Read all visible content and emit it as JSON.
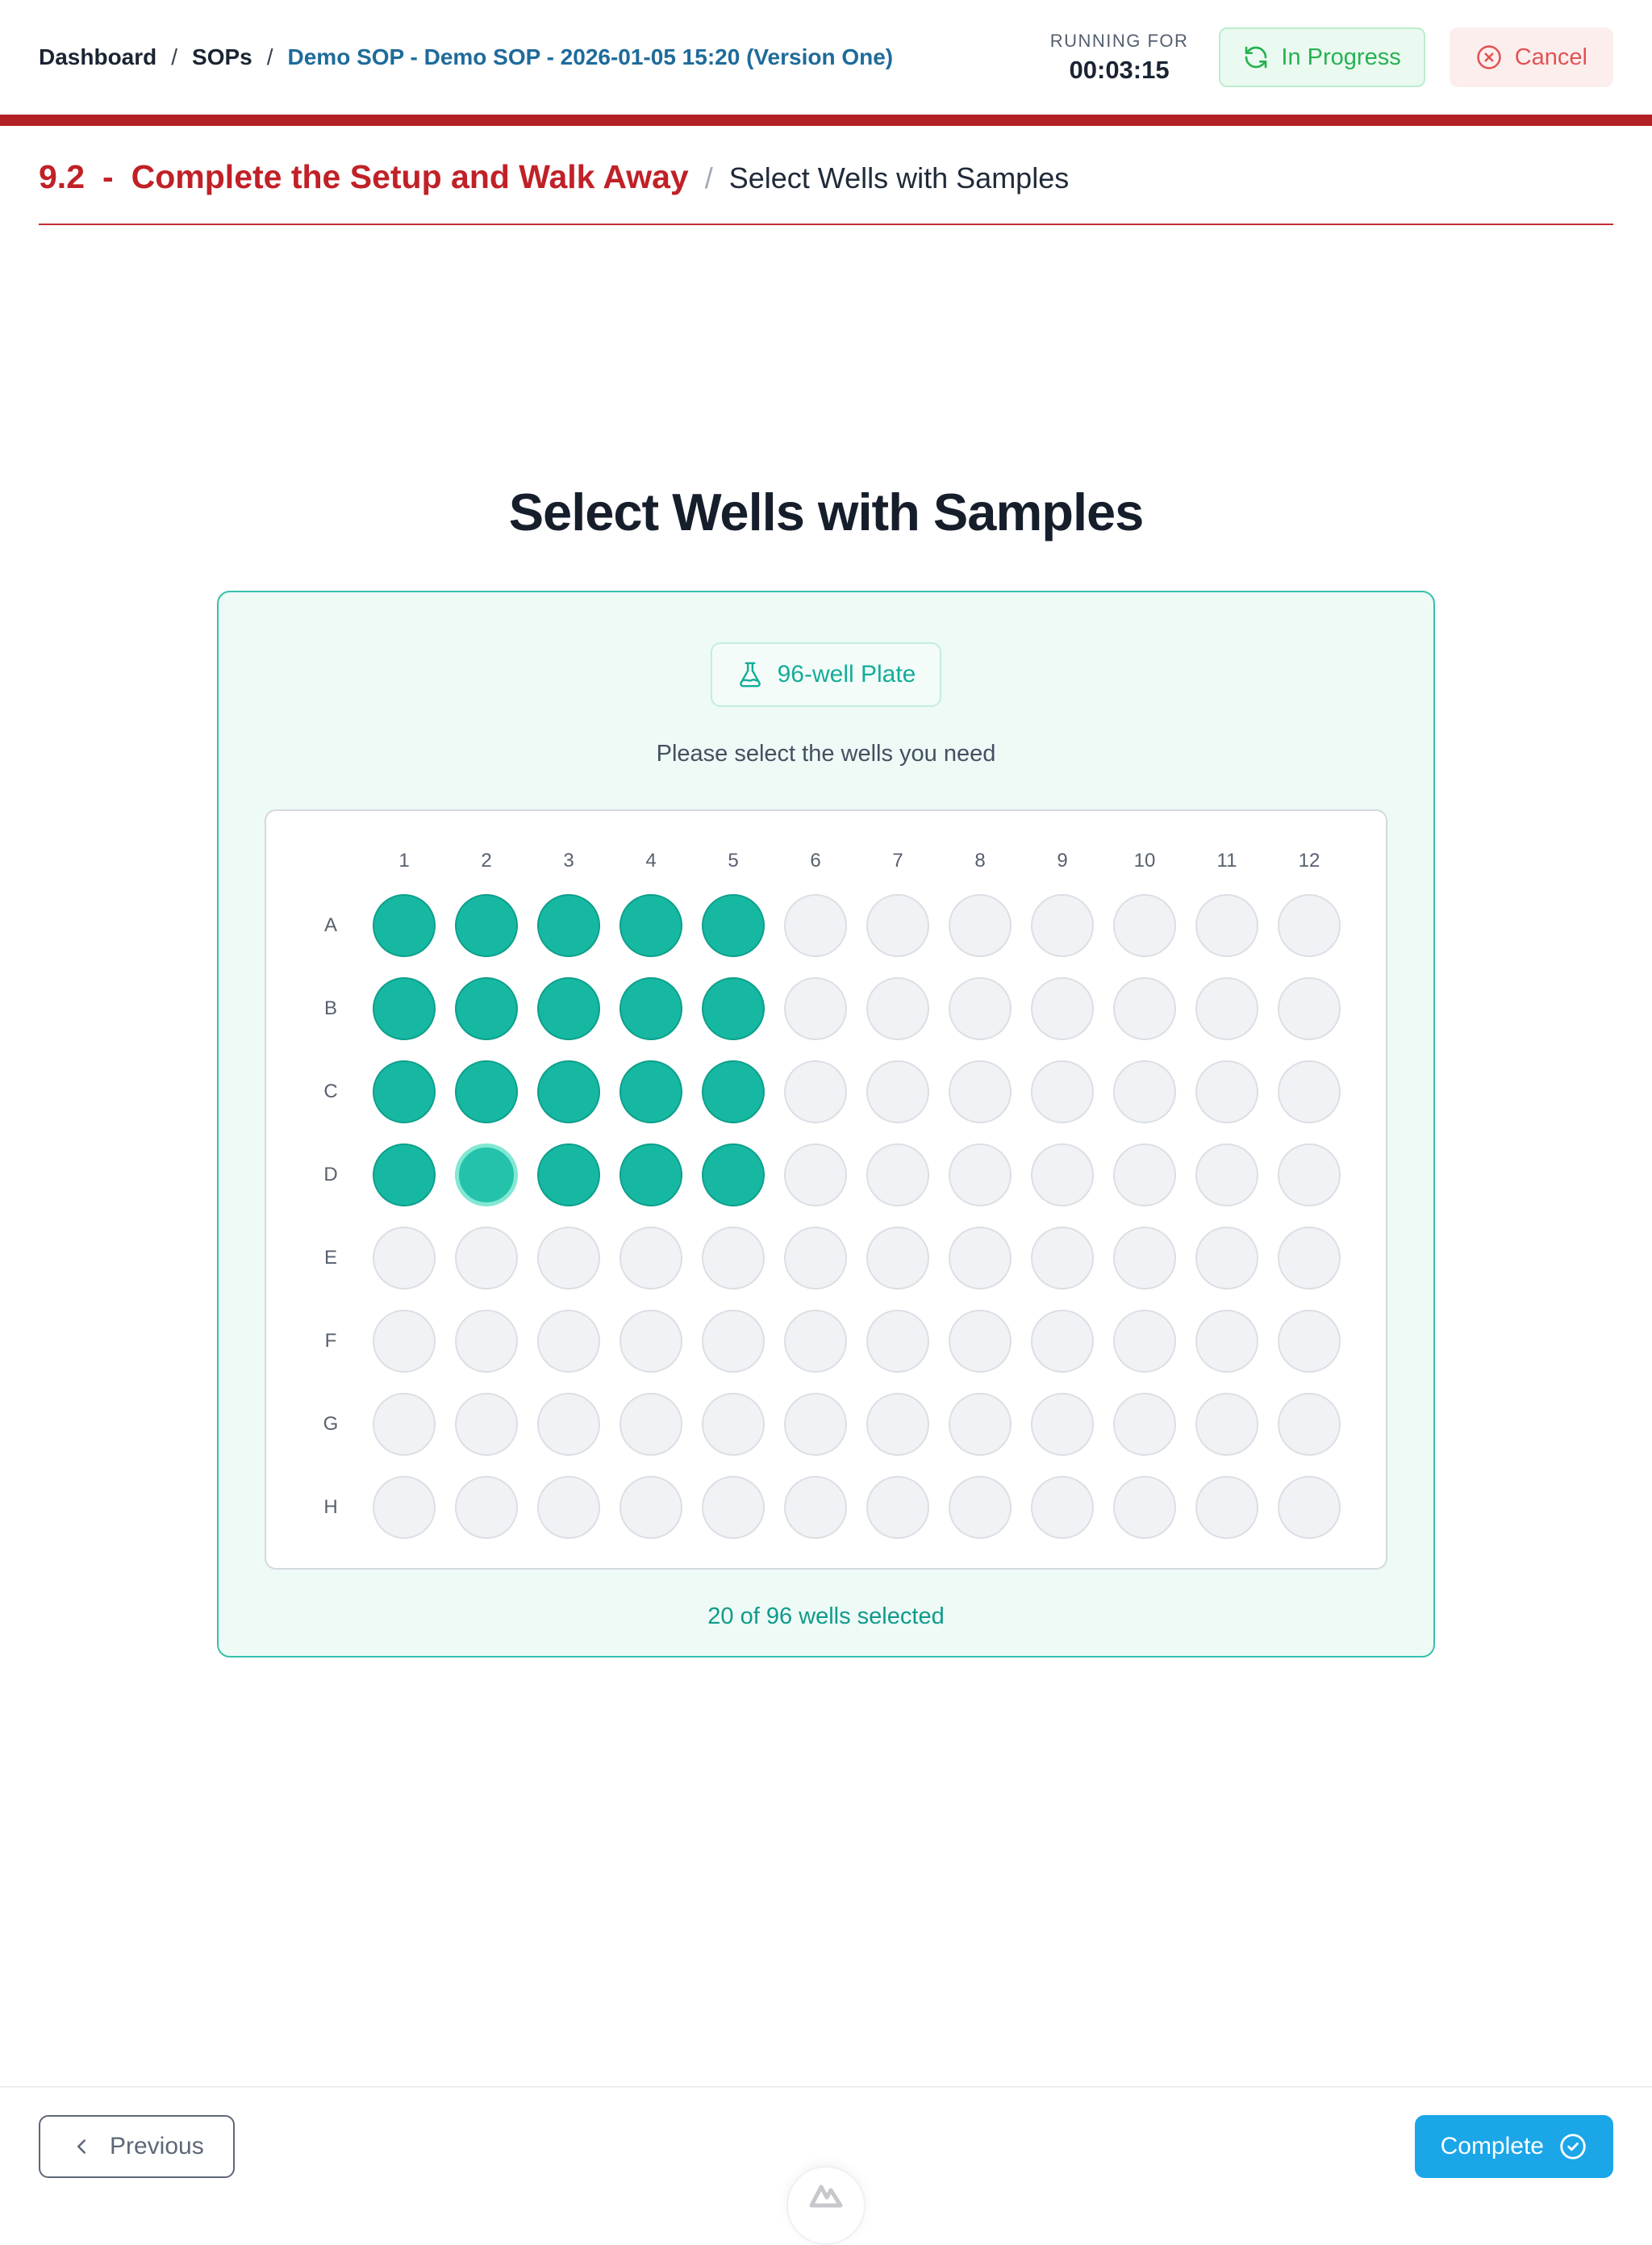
{
  "breadcrumb": {
    "separator": "/",
    "items": [
      {
        "label": "Dashboard"
      },
      {
        "label": "SOPs"
      },
      {
        "label": "Demo SOP - Demo SOP - 2026-01-05 15:20 (Version One)"
      }
    ]
  },
  "topbar": {
    "running_for_label": "RUNNING FOR",
    "timer": "00:03:15",
    "status_label": "In Progress",
    "cancel_label": "Cancel"
  },
  "section": {
    "step_number": "9.2",
    "step_dash": "-",
    "step_title": "Complete the Setup and Walk Away",
    "separator": "/",
    "substep_title": "Select Wells with Samples"
  },
  "main": {
    "title": "Select Wells with Samples",
    "plate_badge_label": "96-well Plate",
    "prompt": "Please select the wells you need",
    "selection_summary": "20 of 96 wells selected"
  },
  "plate": {
    "columns": [
      "1",
      "2",
      "3",
      "4",
      "5",
      "6",
      "7",
      "8",
      "9",
      "10",
      "11",
      "12"
    ],
    "rows": [
      "A",
      "B",
      "C",
      "D",
      "E",
      "F",
      "G",
      "H"
    ],
    "selected_wells": [
      "A1",
      "A2",
      "A3",
      "A4",
      "A5",
      "B1",
      "B2",
      "B3",
      "B4",
      "B5",
      "C1",
      "C2",
      "C3",
      "C4",
      "C5",
      "D1",
      "D2",
      "D3",
      "D4",
      "D5"
    ],
    "focused_well": "D2",
    "selected_count": 20,
    "total_wells": 96
  },
  "footer": {
    "previous_label": "Previous",
    "complete_label": "Complete"
  },
  "icons": {
    "plate_badge": "flask-icon",
    "status": "sync-icon",
    "cancel": "circle-x-icon",
    "previous": "chevron-left-icon",
    "complete": "check-circle-icon",
    "logo": "mountain-logo-icon"
  },
  "colors": {
    "accent_red": "#b22125",
    "step_red": "#c02127",
    "breadcrumb_link_blue": "#1e6b9b",
    "teal_selected_well": "#16b8a2",
    "card_border_teal": "#37c0ad",
    "status_green": "#27b152",
    "cancel_red": "#e25353",
    "complete_blue": "#1ba6e8"
  }
}
